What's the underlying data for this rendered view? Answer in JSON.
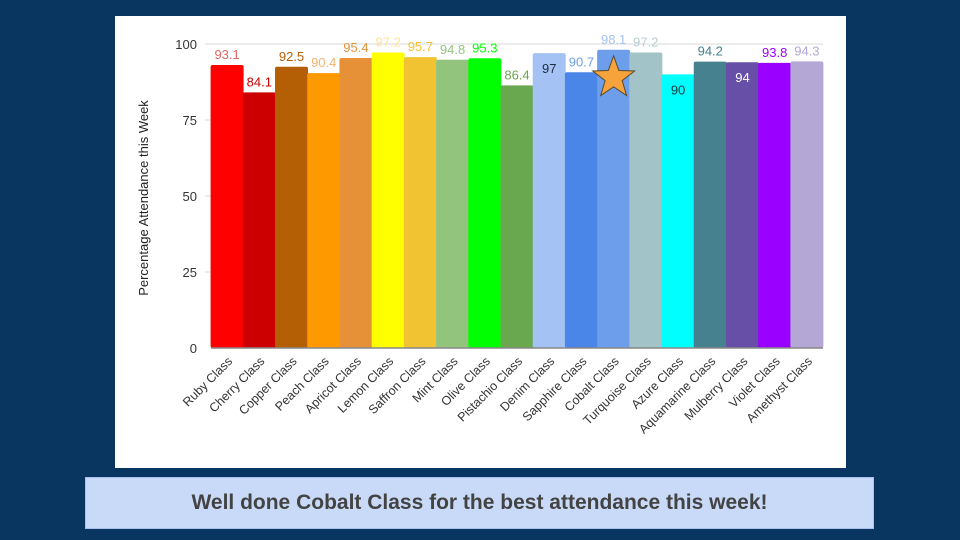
{
  "banner": {
    "message": "Well done Cobalt Class for the best attendance this week!"
  },
  "chart_data": {
    "type": "bar",
    "title": "",
    "xlabel": "",
    "ylabel": "Percentage Attendance this Week",
    "ylim": [
      0,
      100
    ],
    "yticks": [
      0,
      25,
      50,
      75,
      100
    ],
    "grid": true,
    "legend": "none",
    "highlight": {
      "category": "Cobalt Class",
      "marker": "star-icon",
      "color": "#f6a33b"
    },
    "categories": [
      "Ruby Class",
      "Cherry Class",
      "Copper Class",
      "Peach Class",
      "Apricot Class",
      "Lemon Class",
      "Saffron Class",
      "Mint Class",
      "Olive Class",
      "Pistachio Class",
      "Denim Class",
      "Sapphire Class",
      "Cobalt Class",
      "Turquoise Class",
      "Azure Class",
      "Aquamarine Class",
      "Mulberry Class",
      "Violet Class",
      "Amethyst Class"
    ],
    "values": [
      93.1,
      84.1,
      92.5,
      90.4,
      95.4,
      97.2,
      95.7,
      94.8,
      95.3,
      86.4,
      97,
      90.7,
      98.1,
      97.2,
      90,
      94.2,
      94,
      93.8,
      94.3
    ],
    "labels": [
      "93.1",
      "84.1",
      "92.5",
      "90.4",
      "95.4",
      "97.2",
      "95.7",
      "94.8",
      "95.3",
      "86.4",
      "97",
      "90.7",
      "98.1",
      "97.2",
      "90",
      "94.2",
      "94",
      "93.8",
      "94.3"
    ],
    "colors": [
      "#ff0000",
      "#cc0000",
      "#b45f06",
      "#ff9900",
      "#e69138",
      "#ffff00",
      "#f1c232",
      "#93c47d",
      "#00ff00",
      "#6aa84f",
      "#a4c2f4",
      "#4a86e8",
      "#6d9eeb",
      "#a2c4c9",
      "#00ffff",
      "#45818e",
      "#674ea7",
      "#9900ff",
      "#b4a7d6"
    ],
    "label_colors": [
      "#e06666",
      "#cc0000",
      "#b45f06",
      "#f6b26b",
      "#e69138",
      "#ffe599",
      "#f1c232",
      "#93c47d",
      "#00ff00",
      "#6aa84f",
      "#1c2c44",
      "#6d9eeb",
      "#a4c2f4",
      "#b7cdd1",
      "#0b3b3b",
      "#45818e",
      "#ffffff",
      "#9900ff",
      "#b4a7d6"
    ],
    "label_inside": [
      false,
      false,
      false,
      false,
      false,
      false,
      false,
      false,
      false,
      false,
      true,
      false,
      false,
      false,
      true,
      false,
      true,
      false,
      false
    ]
  }
}
